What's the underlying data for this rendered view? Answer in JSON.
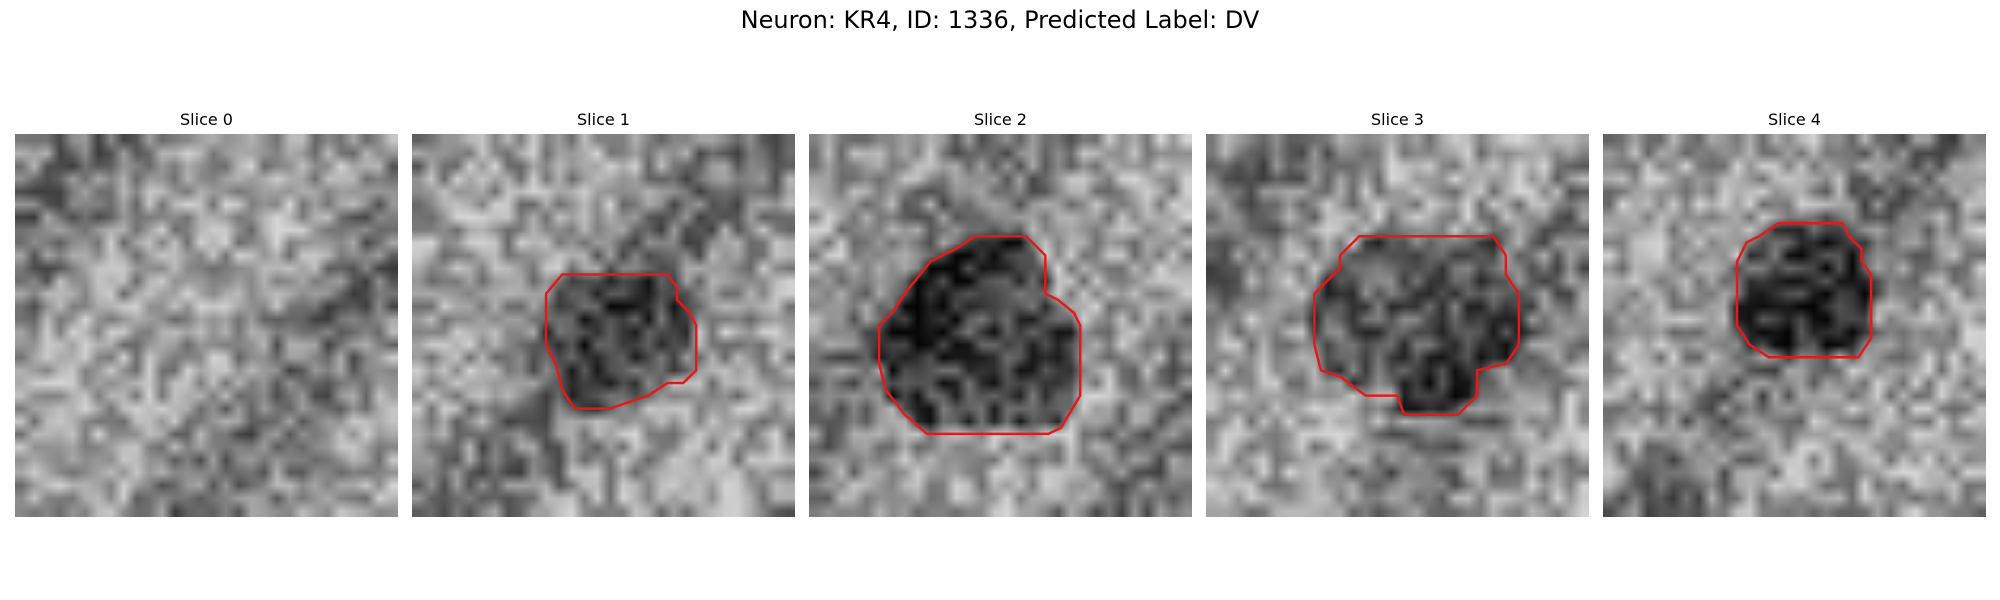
{
  "title": "Neuron: KR4, ID: 1336, Predicted Label: DV",
  "panels": [
    {
      "title": "Slice 0",
      "seed": 11,
      "dark_level": 0.0,
      "contour": []
    },
    {
      "title": "Slice 1",
      "seed": 23,
      "dark_level": 0.45,
      "contour": [
        [
          0.392,
          0.367
        ],
        [
          0.667,
          0.367
        ],
        [
          0.692,
          0.4
        ],
        [
          0.692,
          0.433
        ],
        [
          0.725,
          0.467
        ],
        [
          0.742,
          0.5
        ],
        [
          0.742,
          0.617
        ],
        [
          0.708,
          0.65
        ],
        [
          0.667,
          0.65
        ],
        [
          0.617,
          0.683
        ],
        [
          0.517,
          0.717
        ],
        [
          0.425,
          0.717
        ],
        [
          0.392,
          0.667
        ],
        [
          0.375,
          0.6
        ],
        [
          0.35,
          0.55
        ],
        [
          0.35,
          0.417
        ]
      ]
    },
    {
      "title": "Slice 2",
      "seed": 37,
      "dark_level": 0.7,
      "contour": [
        [
          0.433,
          0.267
        ],
        [
          0.567,
          0.267
        ],
        [
          0.617,
          0.317
        ],
        [
          0.617,
          0.417
        ],
        [
          0.65,
          0.433
        ],
        [
          0.692,
          0.467
        ],
        [
          0.708,
          0.5
        ],
        [
          0.708,
          0.683
        ],
        [
          0.658,
          0.767
        ],
        [
          0.625,
          0.783
        ],
        [
          0.308,
          0.783
        ],
        [
          0.25,
          0.733
        ],
        [
          0.2,
          0.667
        ],
        [
          0.183,
          0.6
        ],
        [
          0.183,
          0.5
        ],
        [
          0.217,
          0.467
        ],
        [
          0.25,
          0.417
        ],
        [
          0.317,
          0.333
        ],
        [
          0.383,
          0.3
        ]
      ]
    },
    {
      "title": "Slice 3",
      "seed": 51,
      "dark_level": 0.55,
      "contour": [
        [
          0.4,
          0.267
        ],
        [
          0.75,
          0.267
        ],
        [
          0.783,
          0.317
        ],
        [
          0.783,
          0.367
        ],
        [
          0.817,
          0.417
        ],
        [
          0.817,
          0.55
        ],
        [
          0.783,
          0.6
        ],
        [
          0.708,
          0.617
        ],
        [
          0.708,
          0.683
        ],
        [
          0.658,
          0.733
        ],
        [
          0.517,
          0.733
        ],
        [
          0.5,
          0.683
        ],
        [
          0.417,
          0.683
        ],
        [
          0.35,
          0.633
        ],
        [
          0.3,
          0.617
        ],
        [
          0.283,
          0.55
        ],
        [
          0.283,
          0.417
        ],
        [
          0.35,
          0.35
        ],
        [
          0.35,
          0.317
        ]
      ]
    },
    {
      "title": "Slice 4",
      "seed": 67,
      "dark_level": 0.55,
      "contour": [
        [
          0.408,
          0.267
        ],
        [
          0.458,
          0.233
        ],
        [
          0.625,
          0.233
        ],
        [
          0.642,
          0.267
        ],
        [
          0.675,
          0.3
        ],
        [
          0.675,
          0.333
        ],
        [
          0.7,
          0.367
        ],
        [
          0.7,
          0.533
        ],
        [
          0.667,
          0.583
        ],
        [
          0.433,
          0.583
        ],
        [
          0.383,
          0.55
        ],
        [
          0.35,
          0.5
        ],
        [
          0.35,
          0.333
        ],
        [
          0.375,
          0.283
        ]
      ]
    }
  ]
}
